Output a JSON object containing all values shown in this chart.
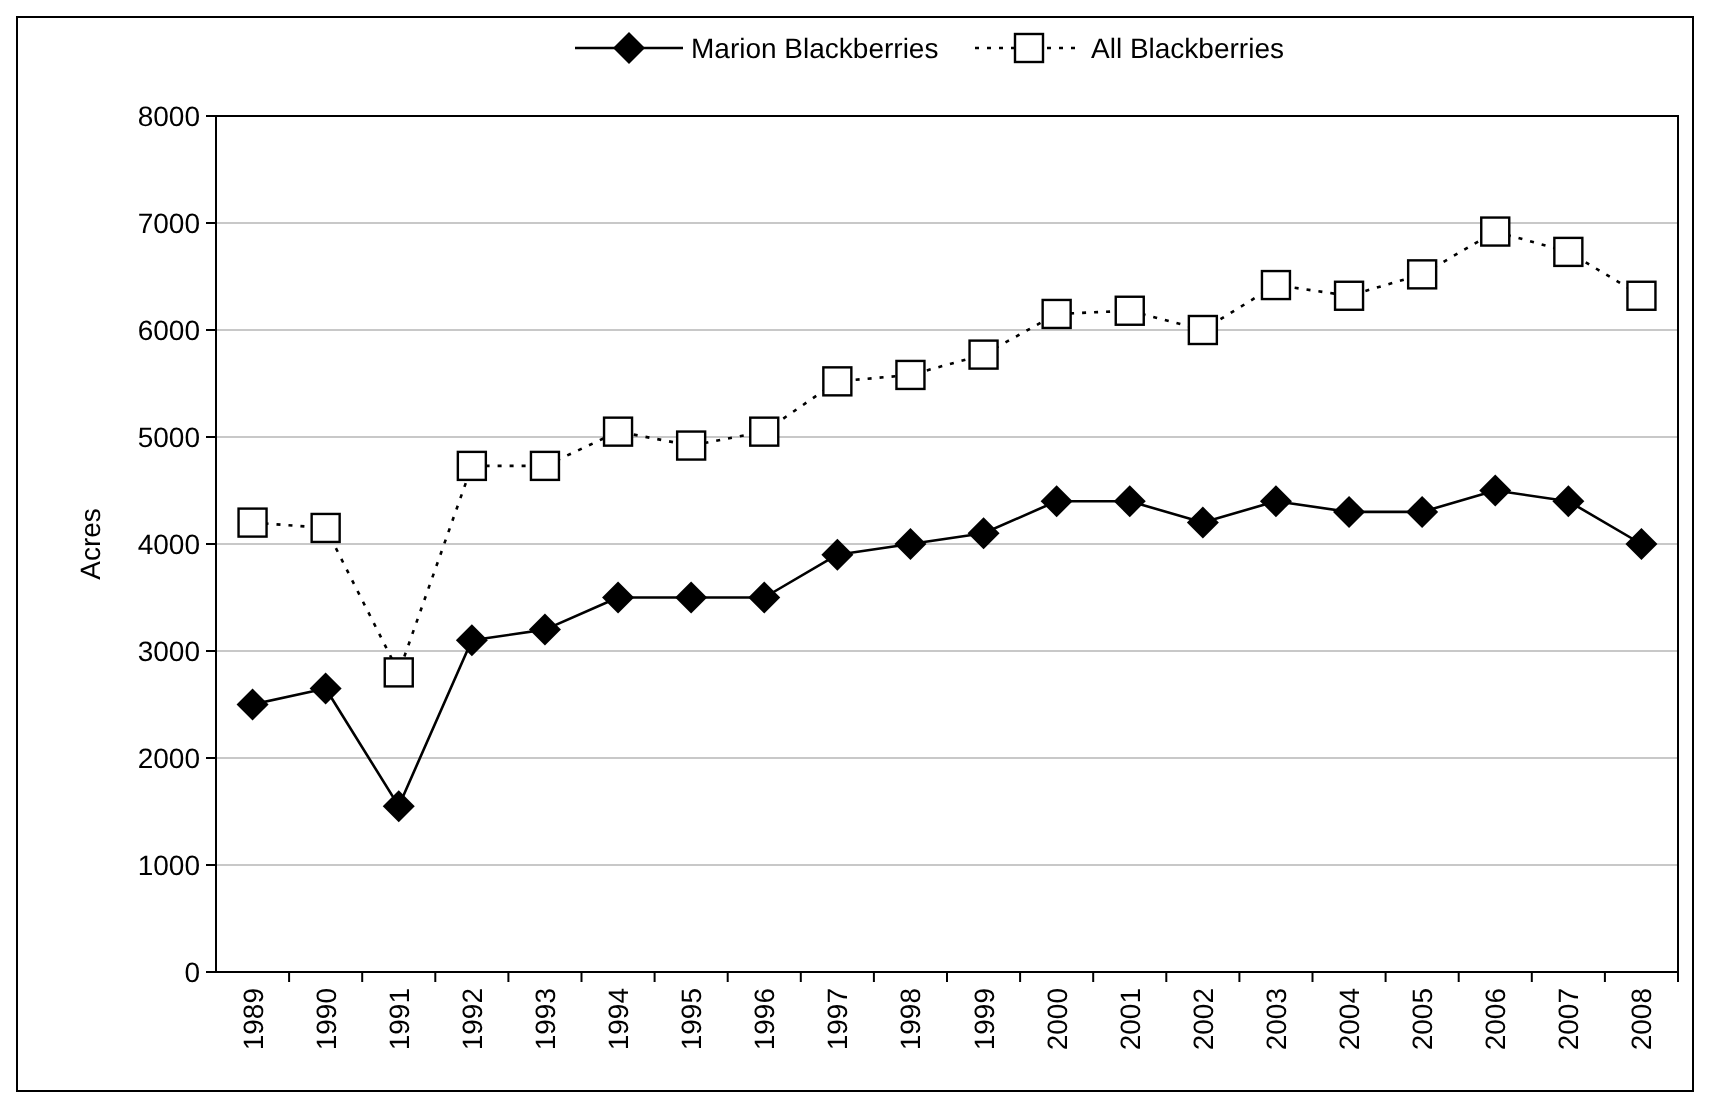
{
  "chart_data": {
    "type": "line",
    "ylabel": "Acres",
    "categories": [
      "1989",
      "1990",
      "1991",
      "1992",
      "1993",
      "1994",
      "1995",
      "1996",
      "1997",
      "1998",
      "1999",
      "2000",
      "2001",
      "2002",
      "2003",
      "2004",
      "2005",
      "2006",
      "2007",
      "2008"
    ],
    "ylim": [
      0,
      8000
    ],
    "yticks": [
      0,
      1000,
      2000,
      3000,
      4000,
      5000,
      6000,
      7000,
      8000
    ],
    "grid": "y",
    "legend": "top",
    "series": [
      {
        "name": "Marion Blackberries",
        "color": "#000000",
        "marker": "diamond",
        "line_style": "solid",
        "values": [
          2500,
          2650,
          1550,
          3100,
          3200,
          3500,
          3500,
          3500,
          3900,
          4000,
          4100,
          4400,
          4400,
          4200,
          4400,
          4300,
          4300,
          4500,
          4400,
          4000
        ]
      },
      {
        "name": "All Blackberries",
        "color": "#000000",
        "marker": "square",
        "line_style": "dotted",
        "values": [
          4200,
          4150,
          2800,
          4730,
          4730,
          5050,
          4920,
          5050,
          5520,
          5580,
          5770,
          6150,
          6180,
          6000,
          6420,
          6320,
          6520,
          6920,
          6730,
          6320
        ]
      }
    ]
  }
}
